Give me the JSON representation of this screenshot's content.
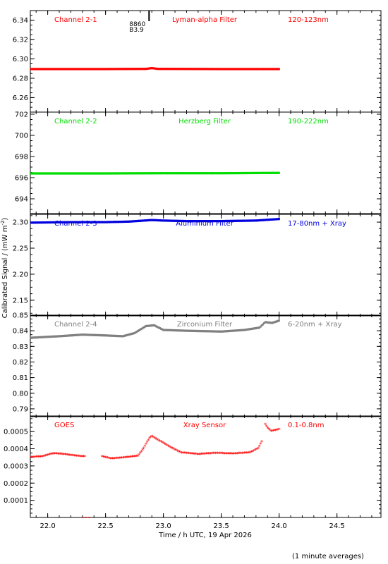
{
  "chart_data": {
    "type": "scatter",
    "ylabel": "Calibrated Signal / (mW m^-2)",
    "xlabel": "Time / h UTC, 19 Apr 2026",
    "footer": "(1 minute averages)",
    "marker": {
      "line1": "8860",
      "line2": "B3.9",
      "x": 22.87
    },
    "xlim": [
      21.85,
      24.88
    ],
    "xticks": [
      22.0,
      22.5,
      23.0,
      23.5,
      24.0,
      24.5
    ],
    "xticklabels": [
      "22.0",
      "22.5",
      "23.0",
      "23.5",
      "24.0",
      "24.5"
    ],
    "panels": [
      {
        "name": "Channel 2-1",
        "filter": "Lyman-alpha Filter",
        "band": "120-123nm",
        "color": "#ff0000",
        "ylim": [
          6.245,
          6.35
        ],
        "yticks": [
          6.26,
          6.28,
          6.3,
          6.32,
          6.34
        ],
        "yticklabels": [
          "6.26",
          "6.28",
          "6.30",
          "6.32",
          "6.34"
        ],
        "series": [
          [
            21.85,
            6.2895
          ],
          [
            22.5,
            6.2895
          ],
          [
            22.85,
            6.2897
          ],
          [
            22.9,
            6.2905
          ],
          [
            22.95,
            6.2897
          ],
          [
            23.5,
            6.2895
          ],
          [
            24.0,
            6.2895
          ]
        ]
      },
      {
        "name": "Channel 2-2",
        "filter": "Herzberg Filter",
        "band": "190-222nm",
        "color": "#00dd00",
        "ylim": [
          692.6,
          702.2
        ],
        "yticks": [
          694,
          696,
          698,
          700,
          702
        ],
        "yticklabels": [
          "694",
          "696",
          "698",
          "700",
          "702"
        ],
        "series": [
          [
            21.85,
            696.4
          ],
          [
            22.5,
            696.4
          ],
          [
            23.0,
            696.42
          ],
          [
            23.5,
            696.42
          ],
          [
            24.0,
            696.45
          ]
        ]
      },
      {
        "name": "Channel 2-3",
        "filter": "Aluminium Filter",
        "band": "17-80nm + Xray",
        "color": "#0000dd",
        "ylim": [
          2.12,
          2.315
        ],
        "yticks": [
          2.15,
          2.2,
          2.25,
          2.3
        ],
        "yticklabels": [
          "2.15",
          "2.20",
          "2.25",
          "2.30"
        ],
        "series": [
          [
            21.85,
            2.299
          ],
          [
            22.2,
            2.3
          ],
          [
            22.5,
            2.3
          ],
          [
            22.7,
            2.301
          ],
          [
            22.9,
            2.304
          ],
          [
            23.0,
            2.303
          ],
          [
            23.2,
            2.302
          ],
          [
            23.5,
            2.302
          ],
          [
            23.8,
            2.303
          ],
          [
            24.0,
            2.306
          ]
        ]
      },
      {
        "name": "Channel 2-4",
        "filter": "Zirconium Filter",
        "band": "6-20nm + Xray",
        "color": "#808080",
        "ylim": [
          0.785,
          0.85
        ],
        "yticks": [
          0.79,
          0.8,
          0.81,
          0.82,
          0.83,
          0.84,
          0.85
        ],
        "yticklabels": [
          "0.79",
          "0.80",
          "0.81",
          "0.82",
          "0.83",
          "0.84",
          "0.85"
        ],
        "series": [
          [
            21.85,
            0.8355
          ],
          [
            22.1,
            0.8365
          ],
          [
            22.3,
            0.8375
          ],
          [
            22.5,
            0.837
          ],
          [
            22.65,
            0.8365
          ],
          [
            22.75,
            0.8385
          ],
          [
            22.85,
            0.843
          ],
          [
            22.92,
            0.8435
          ],
          [
            23.0,
            0.8405
          ],
          [
            23.2,
            0.84
          ],
          [
            23.5,
            0.8395
          ],
          [
            23.7,
            0.8405
          ],
          [
            23.83,
            0.842
          ],
          [
            23.88,
            0.8455
          ],
          [
            23.94,
            0.845
          ],
          [
            24.0,
            0.8465
          ]
        ]
      },
      {
        "name": "GOES",
        "filter": "Xray Sensor",
        "band": "0.1-0.8nm",
        "color": "#ff0000",
        "ylim": [
          0.0,
          0.0005908
        ],
        "yticks": [
          0.0001,
          0.0002,
          0.0003,
          0.0004,
          0.0005
        ],
        "yticklabels": [
          "0.0001",
          "0.0002",
          "0.0003",
          "0.0004",
          "0.0005"
        ],
        "segments": [
          [
            [
              21.85,
              0.000348
            ],
            [
              21.95,
              0.000352
            ],
            [
              22.05,
              0.00037
            ],
            [
              22.15,
              0.000365
            ],
            [
              22.25,
              0.000355
            ],
            [
              22.32,
              0.000352
            ]
          ],
          [
            [
              22.47,
              0.000352
            ],
            [
              22.55,
              0.00034
            ],
            [
              22.65,
              0.000345
            ],
            [
              22.78,
              0.000355
            ],
            [
              22.83,
              0.0004
            ],
            [
              22.88,
              0.00046
            ],
            [
              22.9,
              0.00047
            ],
            [
              22.95,
              0.00045
            ],
            [
              23.05,
              0.00041
            ],
            [
              23.15,
              0.000375
            ],
            [
              23.3,
              0.000365
            ],
            [
              23.45,
              0.000372
            ],
            [
              23.6,
              0.000368
            ],
            [
              23.75,
              0.000375
            ],
            [
              23.82,
              0.0004
            ],
            [
              23.85,
              0.00044
            ]
          ],
          [
            [
              23.88,
              0.00054
            ],
            [
              23.9,
              0.00052
            ],
            [
              23.93,
              0.0005
            ],
            [
              23.97,
              0.000505
            ],
            [
              24.0,
              0.00051
            ]
          ]
        ],
        "outliers": [
          [
            22.3,
            0.0
          ],
          [
            22.33,
            0.0
          ],
          [
            22.36,
            0.0
          ]
        ]
      }
    ]
  }
}
